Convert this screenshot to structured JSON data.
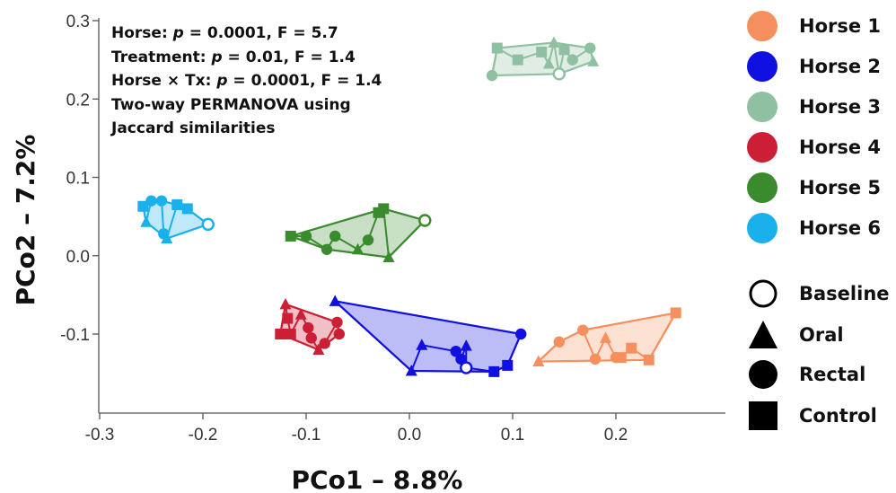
{
  "chart_data": {
    "type": "scatter",
    "xlabel": "PCo1 – 8.8%",
    "ylabel": "PCo2 – 7.2%",
    "xlim": [
      -0.3,
      0.3
    ],
    "ylim": [
      -0.2,
      0.3
    ],
    "x_ticks": [
      "-0.3",
      "-0.2",
      "-0.1",
      "0.0",
      "0.1",
      "0.2"
    ],
    "y_ticks": [
      "0.3",
      "0.2",
      "0.1",
      "0.0",
      "-0.1"
    ],
    "x_tick_values": [
      -0.3,
      -0.2,
      -0.1,
      0.0,
      0.1,
      0.2
    ],
    "y_tick_values": [
      0.3,
      0.2,
      0.1,
      0.0,
      -0.1
    ],
    "annotation": {
      "line1_prefix": "Horse: ",
      "line1_p": "p",
      "line1_rest": " = 0.0001, F = 5.7",
      "line2_prefix": "Treatment: ",
      "line2_p": "p",
      "line2_rest": " = 0.01, F = 1.4",
      "line3_prefix": "Horse × Tx: ",
      "line3_p": "p",
      "line3_rest": " = 0.0001, F = 1.4",
      "line4": "Two-way PERMANOVA using",
      "line5": "Jaccard similarities"
    },
    "series": [
      {
        "name": "Horse 1",
        "color": "#F58F5E",
        "points": [
          {
            "x": 0.125,
            "y": -0.135,
            "shape": "triangle"
          },
          {
            "x": 0.145,
            "y": -0.11,
            "shape": "circle"
          },
          {
            "x": 0.168,
            "y": -0.095,
            "shape": "circle"
          },
          {
            "x": 0.18,
            "y": -0.132,
            "shape": "circle"
          },
          {
            "x": 0.19,
            "y": -0.105,
            "shape": "triangle"
          },
          {
            "x": 0.2,
            "y": -0.13,
            "shape": "circle"
          },
          {
            "x": 0.205,
            "y": -0.13,
            "shape": "square"
          },
          {
            "x": 0.215,
            "y": -0.118,
            "shape": "square"
          },
          {
            "x": 0.232,
            "y": -0.133,
            "shape": "square"
          },
          {
            "x": 0.258,
            "y": -0.073,
            "shape": "square"
          }
        ]
      },
      {
        "name": "Horse 2",
        "color": "#1010E0",
        "points": [
          {
            "x": -0.072,
            "y": -0.058,
            "shape": "triangle"
          },
          {
            "x": 0.002,
            "y": -0.147,
            "shape": "triangle"
          },
          {
            "x": 0.012,
            "y": -0.114,
            "shape": "triangle"
          },
          {
            "x": 0.045,
            "y": -0.122,
            "shape": "circle"
          },
          {
            "x": 0.05,
            "y": -0.132,
            "shape": "circle"
          },
          {
            "x": 0.055,
            "y": -0.115,
            "shape": "triangle"
          },
          {
            "x": 0.055,
            "y": -0.143,
            "shape": "baseline"
          },
          {
            "x": 0.082,
            "y": -0.148,
            "shape": "square"
          },
          {
            "x": 0.095,
            "y": -0.14,
            "shape": "square"
          },
          {
            "x": 0.108,
            "y": -0.1,
            "shape": "circle"
          }
        ]
      },
      {
        "name": "Horse 3",
        "color": "#8FC0A2",
        "points": [
          {
            "x": 0.08,
            "y": 0.23,
            "shape": "circle"
          },
          {
            "x": 0.085,
            "y": 0.265,
            "shape": "square"
          },
          {
            "x": 0.105,
            "y": 0.25,
            "shape": "square"
          },
          {
            "x": 0.128,
            "y": 0.26,
            "shape": "square"
          },
          {
            "x": 0.135,
            "y": 0.245,
            "shape": "triangle"
          },
          {
            "x": 0.14,
            "y": 0.272,
            "shape": "triangle"
          },
          {
            "x": 0.145,
            "y": 0.232,
            "shape": "baseline"
          },
          {
            "x": 0.15,
            "y": 0.263,
            "shape": "square"
          },
          {
            "x": 0.158,
            "y": 0.25,
            "shape": "circle"
          },
          {
            "x": 0.175,
            "y": 0.265,
            "shape": "circle"
          },
          {
            "x": 0.178,
            "y": 0.248,
            "shape": "triangle"
          }
        ]
      },
      {
        "name": "Horse 4",
        "color": "#CC1E35",
        "points": [
          {
            "x": -0.125,
            "y": -0.1,
            "shape": "square"
          },
          {
            "x": -0.12,
            "y": -0.062,
            "shape": "triangle"
          },
          {
            "x": -0.118,
            "y": -0.08,
            "shape": "square"
          },
          {
            "x": -0.115,
            "y": -0.1,
            "shape": "square"
          },
          {
            "x": -0.105,
            "y": -0.075,
            "shape": "triangle"
          },
          {
            "x": -0.098,
            "y": -0.092,
            "shape": "circle"
          },
          {
            "x": -0.095,
            "y": -0.105,
            "shape": "circle"
          },
          {
            "x": -0.088,
            "y": -0.12,
            "shape": "triangle"
          },
          {
            "x": -0.082,
            "y": -0.112,
            "shape": "circle"
          },
          {
            "x": -0.07,
            "y": -0.085,
            "shape": "circle"
          },
          {
            "x": -0.068,
            "y": -0.1,
            "shape": "circle"
          }
        ]
      },
      {
        "name": "Horse 5",
        "color": "#3A8A2E",
        "points": [
          {
            "x": -0.115,
            "y": 0.025,
            "shape": "square"
          },
          {
            "x": -0.1,
            "y": 0.025,
            "shape": "circle"
          },
          {
            "x": -0.08,
            "y": 0.008,
            "shape": "circle"
          },
          {
            "x": -0.072,
            "y": 0.025,
            "shape": "circle"
          },
          {
            "x": -0.05,
            "y": 0.008,
            "shape": "triangle"
          },
          {
            "x": -0.04,
            "y": 0.02,
            "shape": "circle"
          },
          {
            "x": -0.03,
            "y": 0.055,
            "shape": "square"
          },
          {
            "x": -0.025,
            "y": 0.06,
            "shape": "square"
          },
          {
            "x": -0.02,
            "y": -0.002,
            "shape": "triangle"
          },
          {
            "x": 0.015,
            "y": 0.045,
            "shape": "baseline"
          }
        ]
      },
      {
        "name": "Horse 6",
        "color": "#1AB0EC",
        "points": [
          {
            "x": -0.258,
            "y": 0.063,
            "shape": "square"
          },
          {
            "x": -0.255,
            "y": 0.043,
            "shape": "triangle"
          },
          {
            "x": -0.25,
            "y": 0.07,
            "shape": "circle"
          },
          {
            "x": -0.24,
            "y": 0.07,
            "shape": "circle"
          },
          {
            "x": -0.238,
            "y": 0.028,
            "shape": "circle"
          },
          {
            "x": -0.235,
            "y": 0.022,
            "shape": "triangle"
          },
          {
            "x": -0.225,
            "y": 0.065,
            "shape": "square"
          },
          {
            "x": -0.215,
            "y": 0.06,
            "shape": "square"
          },
          {
            "x": -0.195,
            "y": 0.04,
            "shape": "baseline"
          }
        ]
      }
    ],
    "legend": {
      "placement": "right",
      "horses": [
        {
          "label": "Horse 1",
          "color": "#F58F5E"
        },
        {
          "label": "Horse 2",
          "color": "#1010E0"
        },
        {
          "label": "Horse 3",
          "color": "#8FC0A2"
        },
        {
          "label": "Horse 4",
          "color": "#CC1E35"
        },
        {
          "label": "Horse 5",
          "color": "#3A8A2E"
        },
        {
          "label": "Horse 6",
          "color": "#1AB0EC"
        }
      ],
      "treatments": [
        {
          "label": "Baseline",
          "shape": "baseline"
        },
        {
          "label": "Oral",
          "shape": "triangle"
        },
        {
          "label": "Rectal",
          "shape": "circle"
        },
        {
          "label": "Control",
          "shape": "square"
        }
      ]
    }
  }
}
